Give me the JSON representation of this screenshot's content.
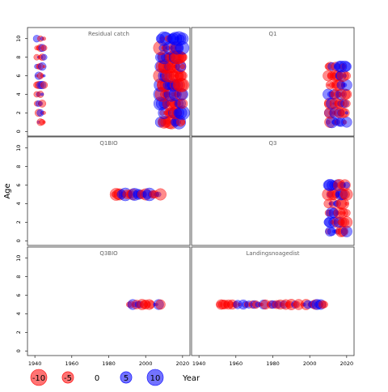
{
  "chart_data": {
    "type": "scatter",
    "subtype": "bubble-residuals",
    "ylabel": "Age",
    "xlabel": "Year",
    "xlim": [
      1936,
      2024
    ],
    "ylim": [
      -0.5,
      11.2
    ],
    "xticks": [
      1940,
      1960,
      1980,
      2000,
      2020
    ],
    "yticks": [
      0,
      2,
      4,
      6,
      8,
      10
    ],
    "colors": {
      "positive": "#0000ff",
      "negative": "#ff0000",
      "frame": "#333333",
      "panel_title": "#666666"
    },
    "panels": [
      {
        "title": "Residual catch",
        "col": 0,
        "row": 0,
        "groups": [
          {
            "ages": [
              1,
              2,
              3,
              4,
              5,
              6,
              7,
              8,
              9,
              10
            ],
            "years": [
              1941,
              1945
            ],
            "amp": 0.25
          },
          {
            "ages": [
              1,
              2,
              3,
              4,
              5,
              6,
              7,
              8,
              9,
              10
            ],
            "years": [
              2008,
              2020
            ],
            "amp": 0.8
          }
        ]
      },
      {
        "title": "Q1",
        "col": 1,
        "row": 0,
        "groups": [
          {
            "ages": [
              1,
              2,
              3,
              4,
              5,
              6,
              7
            ],
            "years": [
              2010,
              2020
            ],
            "amp": 0.55
          }
        ]
      },
      {
        "title": "Q1BIO",
        "col": 0,
        "row": 1,
        "groups": [
          {
            "ages": [
              5
            ],
            "years": [
              1983,
              2008
            ],
            "amp": 0.7
          }
        ]
      },
      {
        "title": "Q3",
        "col": 1,
        "row": 1,
        "groups": [
          {
            "ages": [
              1,
              2,
              3,
              4,
              5,
              6
            ],
            "years": [
              2010,
              2020
            ],
            "amp": 0.55
          }
        ]
      },
      {
        "title": "Q3BIO",
        "col": 0,
        "row": 2,
        "groups": [
          {
            "ages": [
              5
            ],
            "years": [
              1991,
              2008
            ],
            "amp": 0.45
          }
        ]
      },
      {
        "title": "Landingsnoagedist",
        "col": 1,
        "row": 2,
        "groups": [
          {
            "ages": [
              5
            ],
            "years": [
              1951,
              2008
            ],
            "amp": 0.45
          }
        ]
      }
    ],
    "legend": {
      "items": [
        {
          "value": -10,
          "label": "-10"
        },
        {
          "value": -5,
          "label": "-5"
        },
        {
          "value": 0,
          "label": "0"
        },
        {
          "value": 5,
          "label": "5"
        },
        {
          "value": 10,
          "label": "10"
        }
      ],
      "title": "Year"
    }
  }
}
